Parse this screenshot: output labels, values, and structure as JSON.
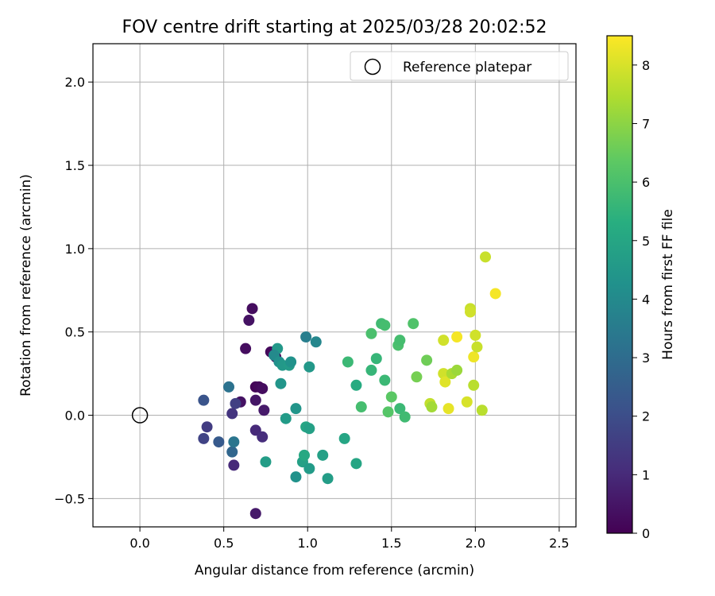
{
  "chart_data": {
    "type": "scatter",
    "title": "FOV centre drift starting at 2025/03/28 20:02:52",
    "xlabel": "Angular distance from reference (arcmin)",
    "ylabel": "Rotation from reference (arcmin)",
    "xlim": [
      -0.28,
      2.6
    ],
    "ylim": [
      -0.67,
      2.23
    ],
    "xticks": [
      0.0,
      0.5,
      1.0,
      1.5,
      2.0,
      2.5
    ],
    "xtick_labels": [
      "0.0",
      "0.5",
      "1.0",
      "1.5",
      "2.0",
      "2.5"
    ],
    "yticks": [
      -0.5,
      0.0,
      0.5,
      1.0,
      1.5,
      2.0
    ],
    "ytick_labels": [
      "−0.5",
      "0.0",
      "0.5",
      "1.0",
      "1.5",
      "2.0"
    ],
    "grid": true,
    "legend": {
      "placement": "top-right",
      "entries": [
        "Reference platepar"
      ]
    },
    "reference_point": {
      "x": 0.0,
      "y": 0.0,
      "marker": "open-circle"
    },
    "colorbar": {
      "label": "Hours from first FF file",
      "colormap": "viridis",
      "range": [
        0,
        8.5
      ],
      "ticks": [
        0,
        1,
        2,
        3,
        4,
        5,
        6,
        7,
        8
      ],
      "tick_labels": [
        "0",
        "1",
        "2",
        "3",
        "4",
        "5",
        "6",
        "7",
        "8"
      ]
    },
    "series": [
      {
        "points": [
          {
            "x": 0.67,
            "y": 0.64,
            "c": 0.3
          },
          {
            "x": 0.65,
            "y": 0.57,
            "c": 0.4
          },
          {
            "x": 0.63,
            "y": 0.4,
            "c": 0.3
          },
          {
            "x": 0.78,
            "y": 0.38,
            "c": 0.2
          },
          {
            "x": 0.81,
            "y": 0.35,
            "c": 0.1
          },
          {
            "x": 0.69,
            "y": 0.17,
            "c": 0.1
          },
          {
            "x": 0.71,
            "y": 0.17,
            "c": 0.2
          },
          {
            "x": 0.73,
            "y": 0.16,
            "c": 0.3
          },
          {
            "x": 0.6,
            "y": 0.08,
            "c": 0.4
          },
          {
            "x": 0.69,
            "y": 0.09,
            "c": 0.5
          },
          {
            "x": 0.74,
            "y": 0.03,
            "c": 0.6
          },
          {
            "x": 0.57,
            "y": 0.07,
            "c": 1.6
          },
          {
            "x": 0.55,
            "y": 0.01,
            "c": 1.3
          },
          {
            "x": 0.69,
            "y": -0.09,
            "c": 1.0
          },
          {
            "x": 0.73,
            "y": -0.13,
            "c": 1.1
          },
          {
            "x": 0.69,
            "y": -0.59,
            "c": 0.6
          },
          {
            "x": 0.56,
            "y": -0.3,
            "c": 1.0
          },
          {
            "x": 0.38,
            "y": 0.09,
            "c": 2.2
          },
          {
            "x": 0.4,
            "y": -0.07,
            "c": 1.5
          },
          {
            "x": 0.38,
            "y": -0.14,
            "c": 1.7
          },
          {
            "x": 0.47,
            "y": -0.16,
            "c": 2.4
          },
          {
            "x": 0.55,
            "y": -0.22,
            "c": 2.8
          },
          {
            "x": 0.56,
            "y": -0.16,
            "c": 3.3
          },
          {
            "x": 0.53,
            "y": 0.17,
            "c": 3.2
          },
          {
            "x": 0.82,
            "y": 0.4,
            "c": 4.5
          },
          {
            "x": 0.8,
            "y": 0.36,
            "c": 4.0
          },
          {
            "x": 0.83,
            "y": 0.32,
            "c": 4.2
          },
          {
            "x": 0.85,
            "y": 0.3,
            "c": 4.5
          },
          {
            "x": 0.89,
            "y": 0.3,
            "c": 4.6
          },
          {
            "x": 0.9,
            "y": 0.32,
            "c": 4.3
          },
          {
            "x": 0.84,
            "y": 0.19,
            "c": 4.4
          },
          {
            "x": 0.99,
            "y": 0.47,
            "c": 3.6
          },
          {
            "x": 1.05,
            "y": 0.44,
            "c": 3.9
          },
          {
            "x": 1.01,
            "y": 0.29,
            "c": 4.5
          },
          {
            "x": 0.93,
            "y": 0.04,
            "c": 4.4
          },
          {
            "x": 0.87,
            "y": -0.02,
            "c": 4.6
          },
          {
            "x": 0.75,
            "y": -0.28,
            "c": 4.7
          },
          {
            "x": 0.93,
            "y": -0.37,
            "c": 4.3
          },
          {
            "x": 0.97,
            "y": -0.28,
            "c": 4.8
          },
          {
            "x": 0.98,
            "y": -0.24,
            "c": 5.1
          },
          {
            "x": 0.99,
            "y": -0.07,
            "c": 5.0
          },
          {
            "x": 1.01,
            "y": -0.08,
            "c": 4.8
          },
          {
            "x": 1.01,
            "y": -0.32,
            "c": 4.6
          },
          {
            "x": 1.09,
            "y": -0.24,
            "c": 4.8
          },
          {
            "x": 1.12,
            "y": -0.38,
            "c": 4.7
          },
          {
            "x": 1.22,
            "y": -0.14,
            "c": 5.0
          },
          {
            "x": 1.29,
            "y": -0.29,
            "c": 5.0
          },
          {
            "x": 1.24,
            "y": 0.32,
            "c": 5.7
          },
          {
            "x": 1.29,
            "y": 0.18,
            "c": 5.2
          },
          {
            "x": 1.32,
            "y": 0.05,
            "c": 5.9
          },
          {
            "x": 1.38,
            "y": 0.49,
            "c": 6.0
          },
          {
            "x": 1.38,
            "y": 0.27,
            "c": 5.6
          },
          {
            "x": 1.41,
            "y": 0.34,
            "c": 5.6
          },
          {
            "x": 1.44,
            "y": 0.55,
            "c": 5.8
          },
          {
            "x": 1.46,
            "y": 0.54,
            "c": 5.9
          },
          {
            "x": 1.46,
            "y": 0.21,
            "c": 5.7
          },
          {
            "x": 1.48,
            "y": 0.02,
            "c": 6.2
          },
          {
            "x": 1.5,
            "y": 0.11,
            "c": 6.3
          },
          {
            "x": 1.54,
            "y": 0.42,
            "c": 6.0
          },
          {
            "x": 1.55,
            "y": 0.45,
            "c": 5.9
          },
          {
            "x": 1.55,
            "y": 0.04,
            "c": 5.7
          },
          {
            "x": 1.58,
            "y": -0.01,
            "c": 5.8
          },
          {
            "x": 1.63,
            "y": 0.55,
            "c": 6.1
          },
          {
            "x": 1.65,
            "y": 0.23,
            "c": 6.7
          },
          {
            "x": 1.71,
            "y": 0.33,
            "c": 6.6
          },
          {
            "x": 1.73,
            "y": 0.07,
            "c": 7.7
          },
          {
            "x": 1.74,
            "y": 0.05,
            "c": 7.3
          },
          {
            "x": 1.81,
            "y": 0.45,
            "c": 7.9
          },
          {
            "x": 1.81,
            "y": 0.25,
            "c": 7.9
          },
          {
            "x": 1.82,
            "y": 0.2,
            "c": 8.1
          },
          {
            "x": 1.84,
            "y": 0.04,
            "c": 8.2
          },
          {
            "x": 1.86,
            "y": 0.25,
            "c": 7.4
          },
          {
            "x": 1.89,
            "y": 0.27,
            "c": 7.2
          },
          {
            "x": 1.89,
            "y": 0.47,
            "c": 8.4
          },
          {
            "x": 1.95,
            "y": 0.08,
            "c": 8.0
          },
          {
            "x": 1.97,
            "y": 0.64,
            "c": 7.8
          },
          {
            "x": 1.97,
            "y": 0.62,
            "c": 7.9
          },
          {
            "x": 1.99,
            "y": 0.35,
            "c": 8.3
          },
          {
            "x": 1.99,
            "y": 0.18,
            "c": 7.6
          },
          {
            "x": 2.0,
            "y": 0.48,
            "c": 7.9
          },
          {
            "x": 2.01,
            "y": 0.41,
            "c": 7.8
          },
          {
            "x": 2.04,
            "y": 0.03,
            "c": 7.6
          },
          {
            "x": 2.06,
            "y": 0.95,
            "c": 7.8
          },
          {
            "x": 2.12,
            "y": 0.73,
            "c": 8.4
          }
        ]
      }
    ]
  }
}
